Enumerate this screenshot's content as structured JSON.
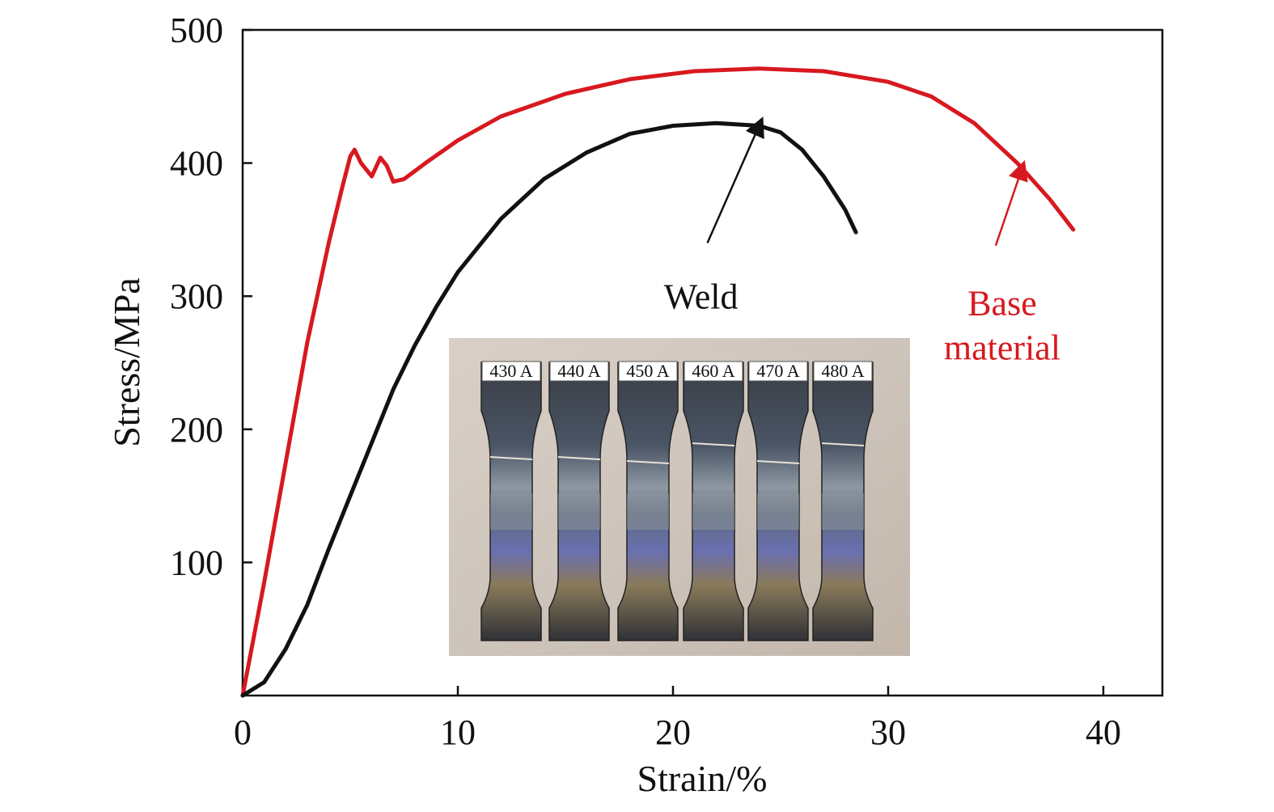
{
  "chart_data": {
    "type": "line",
    "xlabel": "Strain/%",
    "ylabel": "Stress/MPa",
    "xlim": [
      0,
      43
    ],
    "ylim": [
      0,
      500
    ],
    "x_ticks": [
      0,
      10,
      20,
      30,
      40
    ],
    "y_ticks": [
      100,
      200,
      300,
      400,
      500
    ],
    "grid": false,
    "series": [
      {
        "name": "Base material",
        "color": "#d7191f",
        "points": [
          [
            0,
            0
          ],
          [
            1,
            85
          ],
          [
            2,
            175
          ],
          [
            3,
            265
          ],
          [
            4,
            340
          ],
          [
            4.6,
            380
          ],
          [
            5.0,
            405
          ],
          [
            5.2,
            410
          ],
          [
            5.5,
            400
          ],
          [
            6.0,
            390
          ],
          [
            6.4,
            404
          ],
          [
            6.7,
            398
          ],
          [
            7.0,
            386
          ],
          [
            7.5,
            388
          ],
          [
            8.5,
            400
          ],
          [
            10,
            417
          ],
          [
            12,
            435
          ],
          [
            15,
            452
          ],
          [
            18,
            463
          ],
          [
            21,
            469
          ],
          [
            24,
            471
          ],
          [
            27,
            469
          ],
          [
            30,
            461
          ],
          [
            32,
            450
          ],
          [
            34,
            430
          ],
          [
            36,
            400
          ],
          [
            37.5,
            373
          ],
          [
            38.6,
            350
          ]
        ]
      },
      {
        "name": "Weld",
        "color": "#111111",
        "points": [
          [
            0,
            0
          ],
          [
            1,
            10
          ],
          [
            2,
            35
          ],
          [
            3,
            68
          ],
          [
            4,
            110
          ],
          [
            5,
            150
          ],
          [
            6,
            190
          ],
          [
            7,
            230
          ],
          [
            8,
            263
          ],
          [
            9,
            292
          ],
          [
            10,
            318
          ],
          [
            12,
            358
          ],
          [
            14,
            388
          ],
          [
            16,
            408
          ],
          [
            18,
            422
          ],
          [
            20,
            428
          ],
          [
            22,
            430
          ],
          [
            24,
            428
          ],
          [
            25,
            423
          ],
          [
            26,
            410
          ],
          [
            27,
            390
          ],
          [
            28,
            365
          ],
          [
            28.5,
            348
          ]
        ]
      }
    ],
    "annotations": [
      {
        "text": "Weld",
        "arrow_to": [
          24.0,
          428
        ],
        "arrow_from": [
          21.6,
          340
        ],
        "text_at": [
          21.3,
          315
        ],
        "color": "#111111"
      },
      {
        "text_lines": [
          "Base",
          "material"
        ],
        "arrow_to": [
          36.2,
          395
        ],
        "arrow_from": [
          35.0,
          338
        ],
        "text_at": [
          35.3,
          310
        ],
        "color": "#d7191f"
      }
    ],
    "inset_labels": [
      "430 A",
      "440 A",
      "450 A",
      "460 A",
      "470 A",
      "480 A"
    ]
  }
}
